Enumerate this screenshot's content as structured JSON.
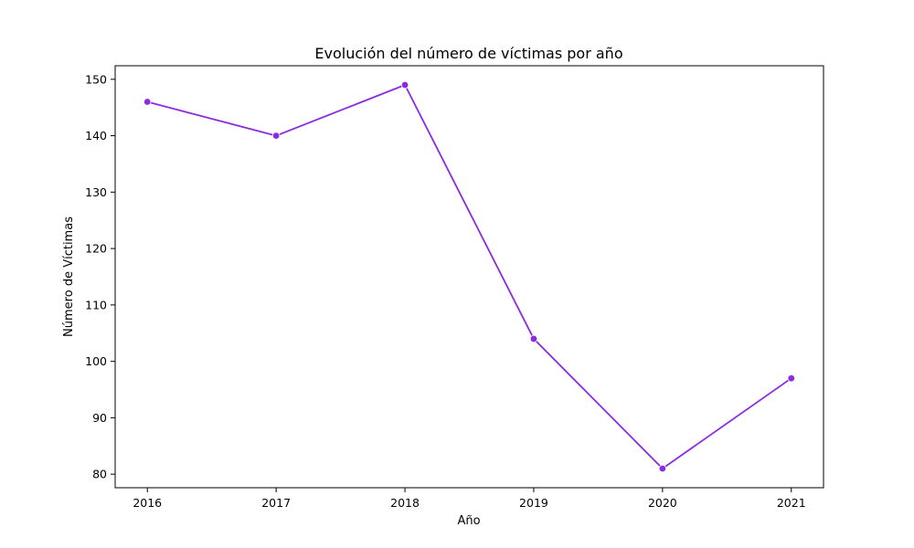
{
  "chart_data": {
    "type": "line",
    "title": "Evolución del número de víctimas por año",
    "xlabel": "Año",
    "ylabel": "Número de Víctimas",
    "x": [
      2016,
      2017,
      2018,
      2019,
      2020,
      2021
    ],
    "x_tick_labels": [
      "2016",
      "2017",
      "2018",
      "2019",
      "2020",
      "2021"
    ],
    "y_ticks": [
      80,
      90,
      100,
      110,
      120,
      130,
      140,
      150
    ],
    "y_tick_labels": [
      "80",
      "90",
      "100",
      "110",
      "120",
      "130",
      "140",
      "150"
    ],
    "series": [
      {
        "values": [
          146,
          140,
          149,
          104,
          81,
          97
        ],
        "color": "#8a2be2",
        "marker": "circle"
      }
    ],
    "ylim": [
      77.6,
      152.4
    ],
    "xlim": [
      2015.75,
      2021.25
    ],
    "grid": false,
    "legend": "none"
  }
}
